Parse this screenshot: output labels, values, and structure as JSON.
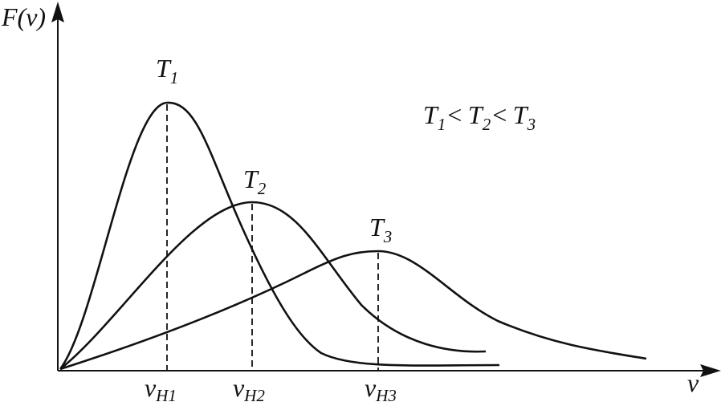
{
  "axes": {
    "y_label": "F(v)",
    "x_label": "v"
  },
  "curves": [
    {
      "label": {
        "base": "T",
        "sub": "1"
      },
      "peak_label": {
        "base": "v",
        "sub": "H1"
      }
    },
    {
      "label": {
        "base": "T",
        "sub": "2"
      },
      "peak_label": {
        "base": "v",
        "sub": "H2"
      }
    },
    {
      "label": {
        "base": "T",
        "sub": "3"
      },
      "peak_label": {
        "base": "v",
        "sub": "H3"
      }
    }
  ],
  "relation": [
    {
      "base": "T",
      "sub": "1"
    },
    "<",
    {
      "base": "T",
      "sub": "2"
    },
    "<",
    {
      "base": "T",
      "sub": "3"
    }
  ]
}
